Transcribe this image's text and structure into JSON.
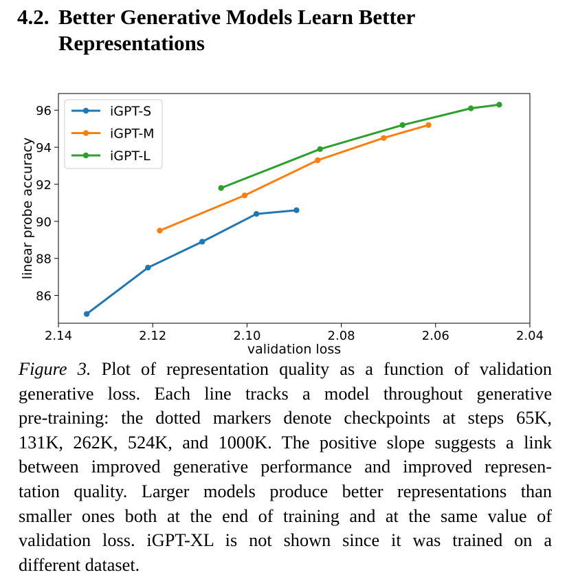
{
  "section": {
    "number": "4.2.",
    "title_line1": "Better Generative Models Learn Better",
    "title_line2": "Representations"
  },
  "chart_data": {
    "type": "line",
    "title": "",
    "xlabel": "validation loss",
    "ylabel": "linear probe accuracy",
    "xlim": [
      2.14,
      2.04
    ],
    "ylim": [
      84.5,
      96.9
    ],
    "x_ticks": [
      2.14,
      2.12,
      2.1,
      2.08,
      2.06,
      2.04
    ],
    "x_tick_labels": [
      "2.14",
      "2.12",
      "2.10",
      "2.08",
      "2.06",
      "2.04"
    ],
    "y_ticks": [
      86,
      88,
      90,
      92,
      94,
      96
    ],
    "y_tick_labels": [
      "86",
      "88",
      "90",
      "92",
      "94",
      "96"
    ],
    "legend_position": "top-left",
    "grid": false,
    "series": [
      {
        "name": "iGPT-S",
        "color": "#1f77b4",
        "points": [
          [
            2.134,
            85.0
          ],
          [
            2.121,
            87.5
          ],
          [
            2.1095,
            88.9
          ],
          [
            2.098,
            90.4
          ],
          [
            2.0895,
            90.6
          ]
        ]
      },
      {
        "name": "iGPT-M",
        "color": "#ff7f0e",
        "points": [
          [
            2.1185,
            89.5
          ],
          [
            2.1005,
            91.4
          ],
          [
            2.085,
            93.3
          ],
          [
            2.071,
            94.5
          ],
          [
            2.0615,
            95.2
          ]
        ]
      },
      {
        "name": "iGPT-L",
        "color": "#2ca02c",
        "points": [
          [
            2.1055,
            91.8
          ],
          [
            2.0845,
            93.9
          ],
          [
            2.067,
            95.2
          ],
          [
            2.0525,
            96.1
          ],
          [
            2.0465,
            96.3
          ]
        ]
      }
    ]
  },
  "caption": {
    "label": "Figure 3.",
    "lines": [
      "Plot of representation quality as a function of validation",
      "generative loss. Each line tracks a model throughout generative",
      "pre-training: the dotted markers denote checkpoints at steps 65K,",
      "131K, 262K, 524K, and 1000K. The positive slope suggests a link",
      "between improved generative performance and improved represen-",
      "tation quality. Larger models produce better representations than",
      "smaller ones both at the end of training and at the same value of",
      "validation loss. iGPT-XL is not shown since it was trained on a",
      "different dataset."
    ]
  }
}
